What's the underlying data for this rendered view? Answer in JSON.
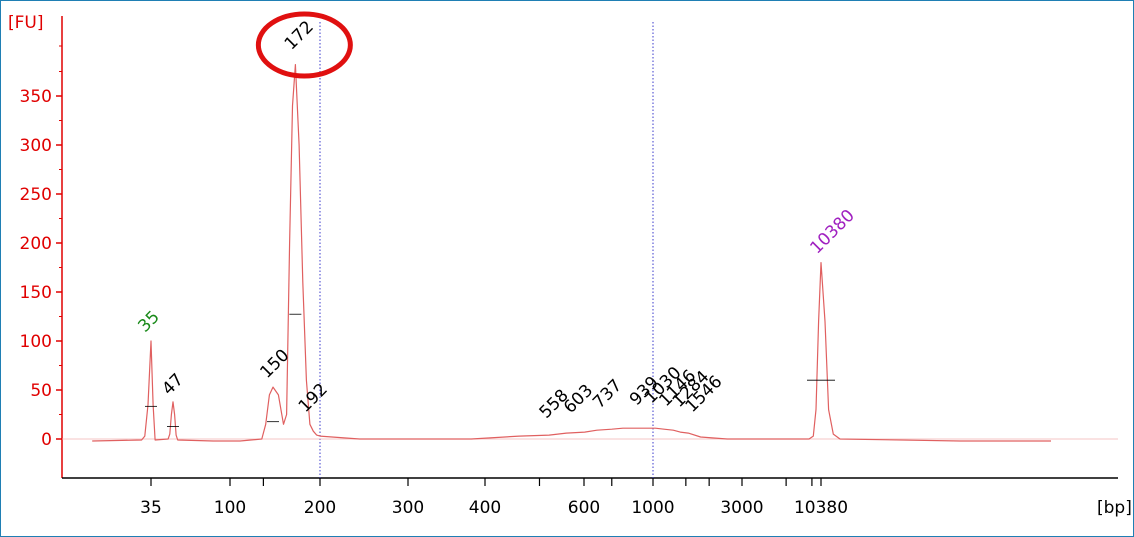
{
  "chart_data": {
    "type": "line",
    "title": "",
    "ylabel": "[FU]",
    "xlabel": "[bp]",
    "ylim": [
      -30,
      400
    ],
    "y_ticks": [
      0,
      50,
      100,
      150,
      200,
      250,
      300,
      350
    ],
    "x_ticks": [
      {
        "label": "35",
        "bp": 35
      },
      {
        "label": "100",
        "bp": 100
      },
      {
        "label": "200",
        "bp": 200
      },
      {
        "label": "300",
        "bp": 300
      },
      {
        "label": "400",
        "bp": 400
      },
      {
        "label": "600",
        "bp": 600
      },
      {
        "label": "1000",
        "bp": 1000
      },
      {
        "label": "3000",
        "bp": 3000
      },
      {
        "label": "10380",
        "bp": 10380
      }
    ],
    "marker_lines_bp": [
      200,
      1000
    ],
    "grid": false,
    "peaks": [
      {
        "label": "35",
        "bp": 35,
        "fu": 100,
        "color": "#1a8a1a"
      },
      {
        "label": "47",
        "bp": 47,
        "fu": 38,
        "color": "#000000"
      },
      {
        "label": "150",
        "bp": 150,
        "fu": 53,
        "color": "#000000"
      },
      {
        "label": "172",
        "bp": 172,
        "fu": 382,
        "color": "#000000",
        "highlighted": true
      },
      {
        "label": "192",
        "bp": 192,
        "fu": 8,
        "color": "#000000"
      },
      {
        "label": "558",
        "bp": 558,
        "fu": 6,
        "color": "#000000"
      },
      {
        "label": "603",
        "bp": 603,
        "fu": 7,
        "color": "#000000"
      },
      {
        "label": "737",
        "bp": 737,
        "fu": 10,
        "color": "#000000"
      },
      {
        "label": "939",
        "bp": 939,
        "fu": 11,
        "color": "#000000"
      },
      {
        "label": "1030",
        "bp": 1030,
        "fu": 11,
        "color": "#000000"
      },
      {
        "label": "1146",
        "bp": 1146,
        "fu": 10,
        "color": "#000000"
      },
      {
        "label": "1284",
        "bp": 1284,
        "fu": 9,
        "color": "#000000"
      },
      {
        "label": "1546",
        "bp": 1546,
        "fu": 6,
        "color": "#000000"
      },
      {
        "label": "10380",
        "bp": 10380,
        "fu": 180,
        "color": "#a020c0"
      }
    ],
    "series": [
      {
        "color": "#e06060",
        "points": [
          [
            20,
            -2
          ],
          [
            32,
            -1
          ],
          [
            33,
            3
          ],
          [
            34,
            35
          ],
          [
            35,
            100
          ],
          [
            36,
            35
          ],
          [
            37,
            -1
          ],
          [
            44,
            0
          ],
          [
            45,
            5
          ],
          [
            46,
            25
          ],
          [
            47,
            38
          ],
          [
            48,
            25
          ],
          [
            49,
            4
          ],
          [
            50,
            -1
          ],
          [
            80,
            -2
          ],
          [
            110,
            -2
          ],
          [
            135,
            0
          ],
          [
            140,
            15
          ],
          [
            145,
            45
          ],
          [
            150,
            53
          ],
          [
            155,
            45
          ],
          [
            160,
            15
          ],
          [
            163,
            25
          ],
          [
            166,
            200
          ],
          [
            169,
            340
          ],
          [
            172,
            382
          ],
          [
            176,
            300
          ],
          [
            180,
            160
          ],
          [
            184,
            60
          ],
          [
            188,
            15
          ],
          [
            192,
            8
          ],
          [
            196,
            4
          ],
          [
            200,
            3
          ],
          [
            240,
            0
          ],
          [
            300,
            0
          ],
          [
            380,
            0
          ],
          [
            460,
            3
          ],
          [
            520,
            4
          ],
          [
            558,
            6
          ],
          [
            603,
            7
          ],
          [
            660,
            9
          ],
          [
            737,
            10
          ],
          [
            800,
            11
          ],
          [
            939,
            11
          ],
          [
            1030,
            11
          ],
          [
            1146,
            10
          ],
          [
            1284,
            9
          ],
          [
            1400,
            7
          ],
          [
            1546,
            6
          ],
          [
            1800,
            2
          ],
          [
            2500,
            0
          ],
          [
            6000,
            0
          ],
          [
            8600,
            0
          ],
          [
            9200,
            3
          ],
          [
            9600,
            30
          ],
          [
            10000,
            120
          ],
          [
            10380,
            180
          ],
          [
            10700,
            120
          ],
          [
            11000,
            30
          ],
          [
            11400,
            5
          ],
          [
            12000,
            0
          ],
          [
            30000,
            -2
          ],
          [
            60000,
            -2
          ]
        ]
      }
    ]
  }
}
